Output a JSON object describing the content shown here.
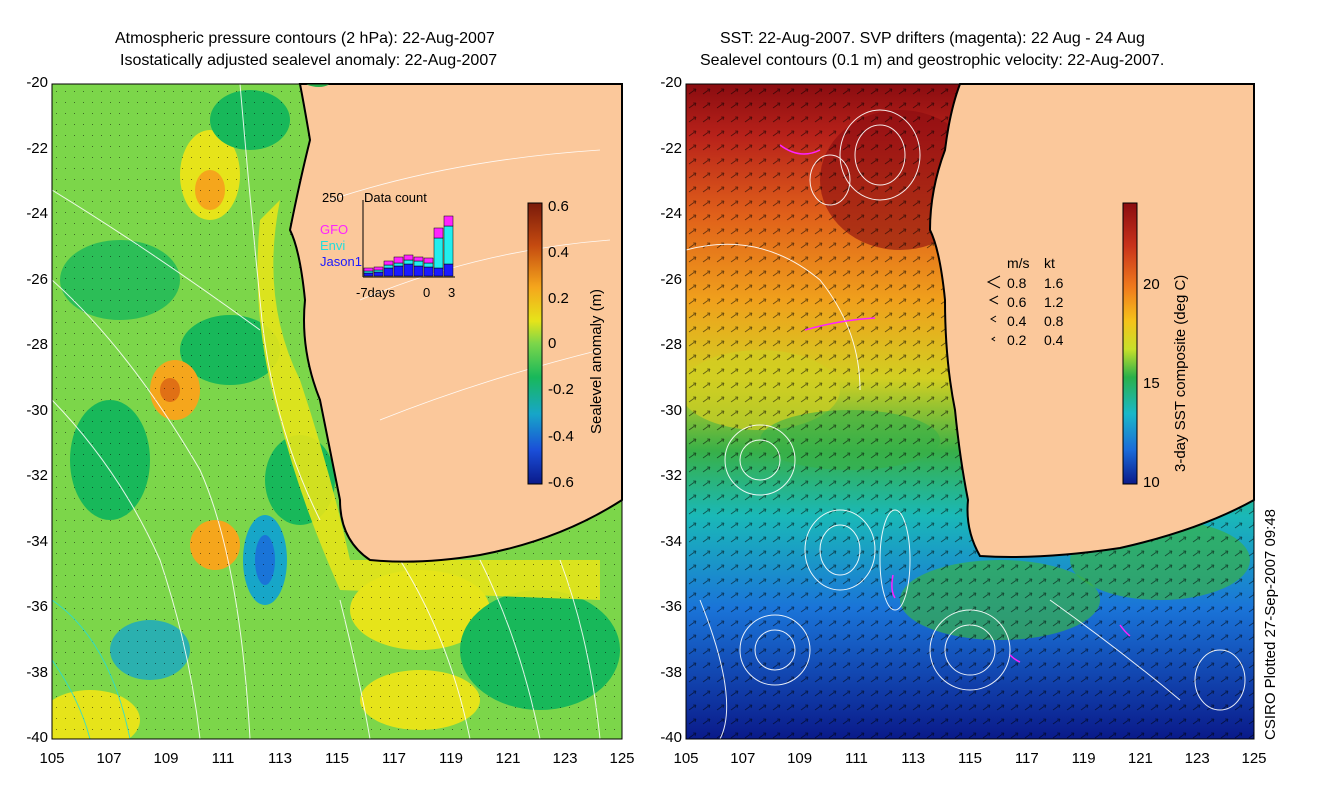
{
  "left_panel": {
    "title_line1": "Atmospheric pressure contours (2 hPa): 22-Aug-2007",
    "title_line2": "Isostatically adjusted sealevel anomaly: 22-Aug-2007",
    "colorbar": {
      "label": "Sealevel anomaly (m)",
      "ticks": [
        "0.6",
        "0.4",
        "0.2",
        "0",
        "-0.2",
        "-0.4",
        "-0.6"
      ]
    },
    "inset": {
      "ymax_label": "250",
      "title": "Data count",
      "x_left": "-7days",
      "x_mid": "0",
      "x_right": "3",
      "legend": [
        {
          "name": "GFO",
          "color": "#ff22ff"
        },
        {
          "name": "Envi",
          "color": "#22eeee"
        },
        {
          "name": "Jason1",
          "color": "#1a1aff"
        }
      ]
    }
  },
  "right_panel": {
    "title_line1": "SST: 22-Aug-2007. SVP drifters (magenta): 22 Aug - 24 Aug",
    "title_line2": "Sealevel contours (0.1 m) and geostrophic velocity: 22-Aug-2007.",
    "colorbar": {
      "label": "3-day SST composite (deg C)",
      "ticks": [
        "20",
        "15",
        "10"
      ]
    },
    "velocity_legend": {
      "header_ms": "m/s",
      "header_kt": "kt",
      "rows": [
        {
          "ms": "0.8",
          "kt": "1.6"
        },
        {
          "ms": "0.6",
          "kt": "1.2"
        },
        {
          "ms": "0.4",
          "kt": "0.8"
        },
        {
          "ms": "0.2",
          "kt": "0.4"
        }
      ]
    }
  },
  "axes": {
    "y_ticks": [
      "-20",
      "-22",
      "-24",
      "-26",
      "-28",
      "-30",
      "-32",
      "-34",
      "-36",
      "-38",
      "-40"
    ],
    "x_ticks": [
      "105",
      "107",
      "109",
      "111",
      "113",
      "115",
      "117",
      "119",
      "121",
      "123",
      "125"
    ]
  },
  "footer": {
    "credit": "CSIRO Plotted 27-Sep-2007 09:48"
  },
  "colors": {
    "land": "#fbc89b",
    "anomaly_scale": [
      "#7a1a0a",
      "#c44a10",
      "#f5a61c",
      "#e6e41a",
      "#7cd64a",
      "#18b85a",
      "#17a6c8",
      "#1a4ed8",
      "#0a1a8a"
    ],
    "sst_scale": [
      "#8a0c10",
      "#c8321a",
      "#f07a1c",
      "#f5c21a",
      "#c8e02a",
      "#2ab04a",
      "#1ab8c8",
      "#1a6ad8",
      "#0a1a8a"
    ]
  }
}
